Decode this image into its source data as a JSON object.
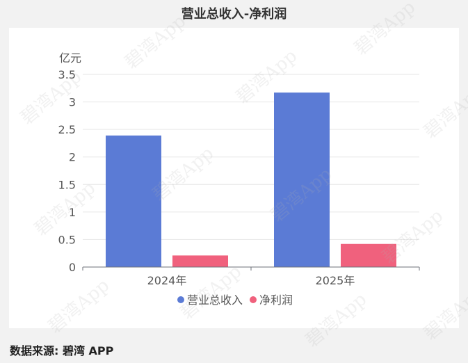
{
  "title": "营业总收入-净利润",
  "source_label": "数据来源: 碧湾 APP",
  "watermark": "碧湾App",
  "colors": {
    "revenue": "#5b7bd5",
    "profit": "#f0617d",
    "grid": "#e6e6e6",
    "axis": "#6e7079",
    "text": "#555555"
  },
  "chart_data": {
    "type": "bar",
    "title": "营业总收入-净利润",
    "unit_label": "亿元",
    "categories": [
      "2024年",
      "2025年"
    ],
    "series": [
      {
        "name": "营业总收入",
        "values": [
          2.39,
          3.17
        ]
      },
      {
        "name": "净利润",
        "values": [
          0.21,
          0.42
        ]
      }
    ],
    "ylim": [
      0,
      3.5
    ],
    "yticks": [
      "0",
      "0.5",
      "1",
      "1.5",
      "2",
      "2.5",
      "3",
      "3.5"
    ],
    "grid": true,
    "legend_position": "bottom-center"
  }
}
